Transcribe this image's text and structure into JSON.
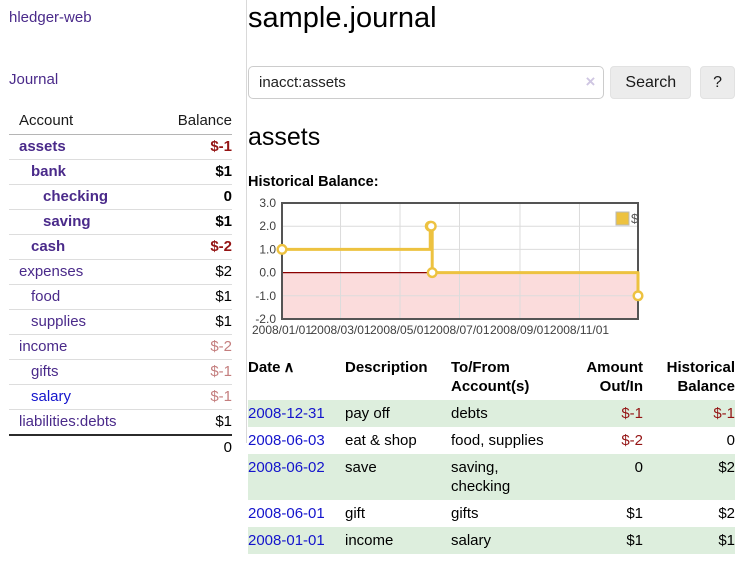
{
  "sidebar": {
    "brand": "hledger-web",
    "journal_link": "Journal",
    "accounts": {
      "header_account": "Account",
      "header_balance": "Balance",
      "rows": [
        {
          "name": "assets",
          "balance": "$-1",
          "indent": 0,
          "bold": true,
          "neg": "strong"
        },
        {
          "name": "bank",
          "balance": "$1",
          "indent": 1,
          "bold": true,
          "neg": ""
        },
        {
          "name": "checking",
          "balance": "0",
          "indent": 2,
          "bold": true,
          "neg": ""
        },
        {
          "name": "saving",
          "balance": "$1",
          "indent": 2,
          "bold": true,
          "neg": ""
        },
        {
          "name": "cash",
          "balance": "$-2",
          "indent": 1,
          "bold": true,
          "neg": "strong"
        },
        {
          "name": "expenses",
          "balance": "$2",
          "indent": 0,
          "bold": false,
          "neg": ""
        },
        {
          "name": "food",
          "balance": "$1",
          "indent": 1,
          "bold": false,
          "neg": ""
        },
        {
          "name": "supplies",
          "balance": "$1",
          "indent": 1,
          "bold": false,
          "neg": ""
        },
        {
          "name": "income",
          "balance": "$-2",
          "indent": 0,
          "bold": false,
          "neg": "soft"
        },
        {
          "name": "gifts",
          "balance": "$-1",
          "indent": 1,
          "bold": false,
          "neg": "soft"
        },
        {
          "name": "salary",
          "balance": "$-1",
          "indent": 1,
          "bold": false,
          "neg": "soft",
          "link_style": "unvisited"
        },
        {
          "name": "liabilities:debts",
          "balance": "$1",
          "indent": 0,
          "bold": false,
          "neg": "",
          "last": true
        }
      ],
      "total": "0"
    }
  },
  "main": {
    "title": "sample.journal",
    "search": {
      "value": "inacct:assets",
      "clear_icon": "×",
      "search_button": "Search",
      "help_button": "?"
    },
    "account_heading": "assets",
    "chart_title": "Historical Balance:"
  },
  "chart_data": {
    "type": "line",
    "title": "Historical Balance",
    "series": [
      {
        "name": "$",
        "color": "#edc240",
        "step": true,
        "points": [
          {
            "date": "2008/01/01",
            "day": 0,
            "value": 1.0
          },
          {
            "date": "2008/06/01",
            "day": 152,
            "value": 2.0
          },
          {
            "date": "2008/06/02",
            "day": 153,
            "value": 2.0
          },
          {
            "date": "2008/06/03",
            "day": 154,
            "value": 0.0
          },
          {
            "date": "2008/12/31",
            "day": 365,
            "value": -1.0
          }
        ]
      }
    ],
    "x_ticks": [
      {
        "label": "2008/01/01",
        "day": 0
      },
      {
        "label": "2008/03/01",
        "day": 60
      },
      {
        "label": "2008/05/01",
        "day": 121
      },
      {
        "label": "2008/07/01",
        "day": 182
      },
      {
        "label": "2008/09/01",
        "day": 244
      },
      {
        "label": "2008/11/01",
        "day": 305
      }
    ],
    "y_ticks": [
      3.0,
      2.0,
      1.0,
      0.0,
      -1.0,
      -2.0
    ],
    "ylim": [
      -2.0,
      3.0
    ],
    "x_range_days": 365,
    "grid": true,
    "legend": {
      "label": "$",
      "position": "top-right"
    },
    "colors": {
      "negative_region": "#fbdcdc",
      "zero_line": "#8b0000",
      "grid": "#dcdcdc",
      "border": "#545454"
    }
  },
  "register": {
    "headers": {
      "date": "Date",
      "sort_icon": "∧",
      "description": "Description",
      "accounts": "To/From Account(s)",
      "amount": "Amount Out/In",
      "balance": "Historical Balance"
    },
    "rows": [
      {
        "date": "2008-12-31",
        "description": "pay off",
        "accounts": "debts",
        "amount": "$-1",
        "amount_neg": true,
        "balance": "$-1",
        "balance_neg": true,
        "shaded": true
      },
      {
        "date": "2008-06-03",
        "description": "eat & shop",
        "accounts": "food, supplies",
        "amount": "$-2",
        "amount_neg": true,
        "balance": "0",
        "balance_neg": false,
        "shaded": false
      },
      {
        "date": "2008-06-02",
        "description": "save",
        "accounts": "saving, checking",
        "amount": "0",
        "amount_neg": false,
        "balance": "$2",
        "balance_neg": false,
        "shaded": true
      },
      {
        "date": "2008-06-01",
        "description": "gift",
        "accounts": "gifts",
        "amount": "$1",
        "amount_neg": false,
        "balance": "$2",
        "balance_neg": false,
        "shaded": false
      },
      {
        "date": "2008-01-01",
        "description": "income",
        "accounts": "salary",
        "amount": "$1",
        "amount_neg": false,
        "balance": "$1",
        "balance_neg": false,
        "shaded": true
      }
    ]
  }
}
